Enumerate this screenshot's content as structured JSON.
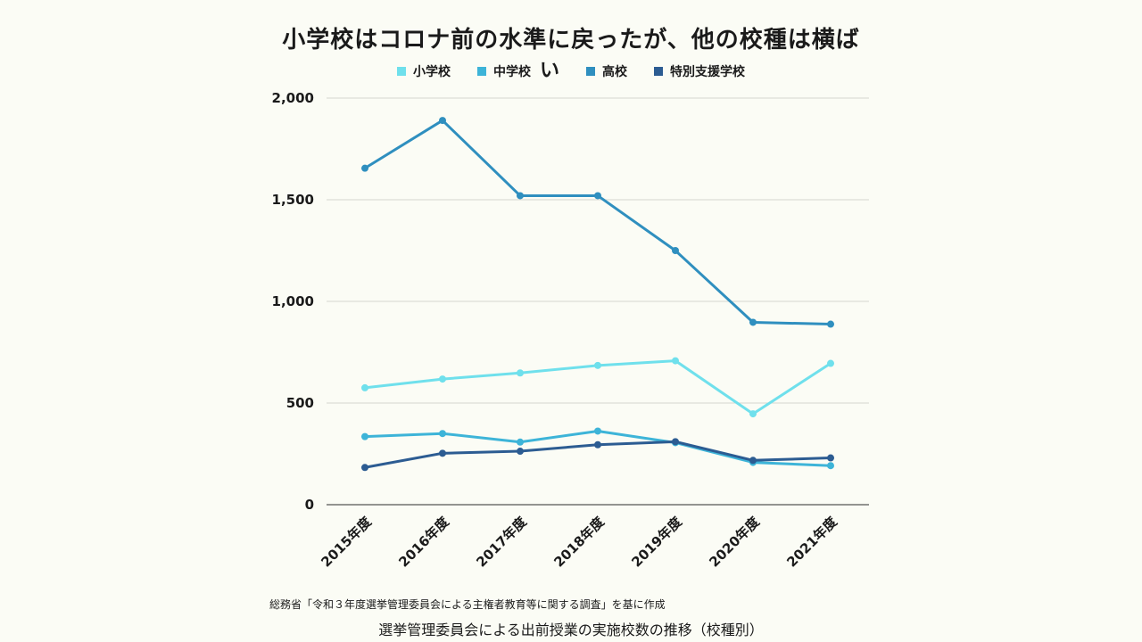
{
  "chart_data": {
    "type": "line",
    "title": "小学校はコロナ前の水準に戻ったが、他の校種は横ば",
    "legend_extra_mark": "い",
    "categories": [
      "2015年度",
      "2016年度",
      "2017年度",
      "2018年度",
      "2019年度",
      "2020年度",
      "2021年度"
    ],
    "series": [
      {
        "name": "小学校",
        "color": "#6fe0ec",
        "values": [
          575,
          618,
          648,
          685,
          708,
          447,
          695
        ]
      },
      {
        "name": "中学校",
        "color": "#3db4d8",
        "values": [
          335,
          350,
          308,
          362,
          305,
          208,
          192
        ]
      },
      {
        "name": "高校",
        "color": "#2f8fbf",
        "values": [
          1655,
          1890,
          1520,
          1520,
          1250,
          897,
          888
        ]
      },
      {
        "name": "特別支援学校",
        "color": "#2c5c92",
        "values": [
          183,
          253,
          263,
          295,
          310,
          218,
          230
        ]
      }
    ],
    "y_ticks": [
      "0",
      "500",
      "1,000",
      "1,500",
      "2,000"
    ],
    "ylim": [
      0,
      2000
    ],
    "grid": true,
    "legend_position": "top-center",
    "source": "総務省「令和３年度選挙管理委員会による主権者教育等に関する調査」を基に作成",
    "caption": "選挙管理委員会による出前授業の実施校数の推移（校種別）"
  }
}
